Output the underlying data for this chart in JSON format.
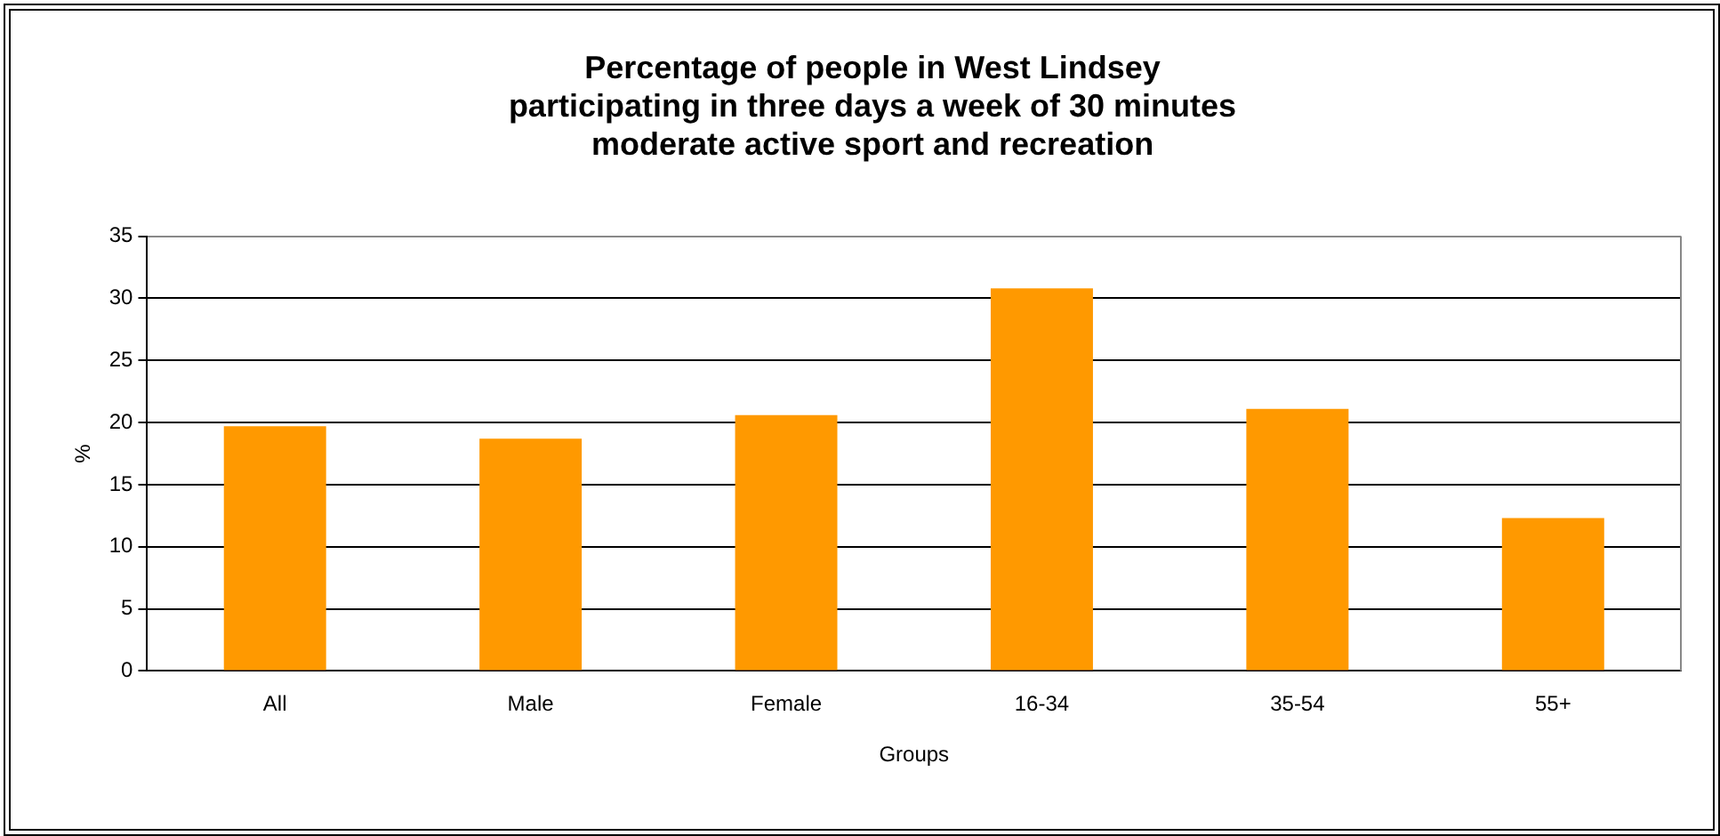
{
  "chart_data": {
    "type": "bar",
    "title": [
      "Percentage of people in West Lindsey",
      "participating in three days a week of 30 minutes",
      "moderate active sport and recreation"
    ],
    "categories": [
      "All",
      "Male",
      "Female",
      "16-34",
      "35-54",
      "55+"
    ],
    "values": [
      19.7,
      18.7,
      20.6,
      30.8,
      21.1,
      12.3
    ],
    "color": "#ff9900",
    "ylim": [
      0,
      35
    ],
    "yticks": [
      0,
      5,
      10,
      15,
      20,
      25,
      30,
      35
    ],
    "ylabel": "%",
    "xlabel": "Groups",
    "grid": "y",
    "legend": false
  }
}
